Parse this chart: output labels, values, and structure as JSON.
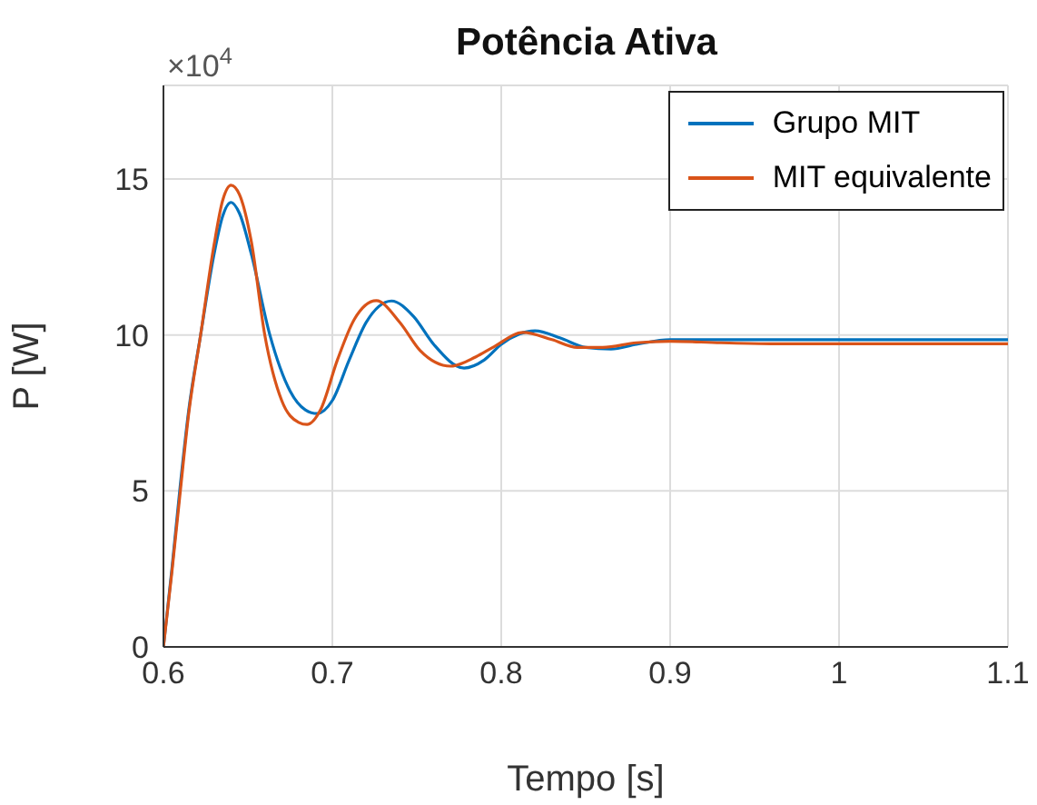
{
  "chart_data": {
    "type": "line",
    "title": "Potência Ativa",
    "xlabel": "Tempo [s]",
    "ylabel": "P [W]",
    "annotations": [
      "×10$^{4}$"
    ],
    "xlim": [
      0.6,
      1.1
    ],
    "xticks": [
      0.6,
      0.7,
      0.8,
      0.9,
      1,
      1.1
    ],
    "ylim": [
      0,
      18
    ],
    "yticks": [
      0,
      5,
      10,
      15
    ],
    "grid": true,
    "legend": "top right",
    "marker": "none",
    "line_style": "solid",
    "series": [
      {
        "name": "Grupo MIT",
        "color": "#0072bd",
        "x": [
          0.6,
          0.605,
          0.61,
          0.615,
          0.622,
          0.63,
          0.635,
          0.64,
          0.645,
          0.652,
          0.663,
          0.675,
          0.684,
          0.691,
          0.7,
          0.71,
          0.72,
          0.735,
          0.748,
          0.76,
          0.778,
          0.79,
          0.8,
          0.82,
          0.835,
          0.85,
          0.865,
          0.88,
          0.9,
          0.92,
          0.95,
          1.0,
          1.05,
          1.1
        ],
        "values": [
          0,
          2.5,
          5.2,
          7.6,
          10,
          12.6,
          13.8,
          14.25,
          13.9,
          12.6,
          10,
          8.2,
          7.6,
          7.48,
          7.9,
          9.2,
          10.4,
          11.09,
          10.6,
          9.7,
          8.94,
          9.2,
          9.7,
          10.13,
          9.9,
          9.6,
          9.55,
          9.7,
          9.85,
          9.85,
          9.85,
          9.85,
          9.85,
          9.85
        ]
      },
      {
        "name": "MIT equivalente",
        "color": "#d95319",
        "x": [
          0.6,
          0.605,
          0.61,
          0.615,
          0.622,
          0.63,
          0.635,
          0.64,
          0.645,
          0.652,
          0.66,
          0.67,
          0.68,
          0.685,
          0.693,
          0.703,
          0.713,
          0.726,
          0.74,
          0.752,
          0.77,
          0.785,
          0.795,
          0.813,
          0.83,
          0.845,
          0.86,
          0.88,
          0.9,
          0.93,
          0.96,
          1.0,
          1.05,
          1.1
        ],
        "values": [
          0,
          2.4,
          5,
          7.5,
          10,
          12.9,
          14.3,
          14.8,
          14.5,
          13,
          10,
          7.9,
          7.2,
          7.13,
          7.6,
          9.2,
          10.5,
          11.1,
          10.4,
          9.5,
          9.0,
          9.3,
          9.6,
          10.08,
          9.85,
          9.6,
          9.6,
          9.75,
          9.8,
          9.75,
          9.72,
          9.72,
          9.72,
          9.72
        ]
      }
    ]
  }
}
